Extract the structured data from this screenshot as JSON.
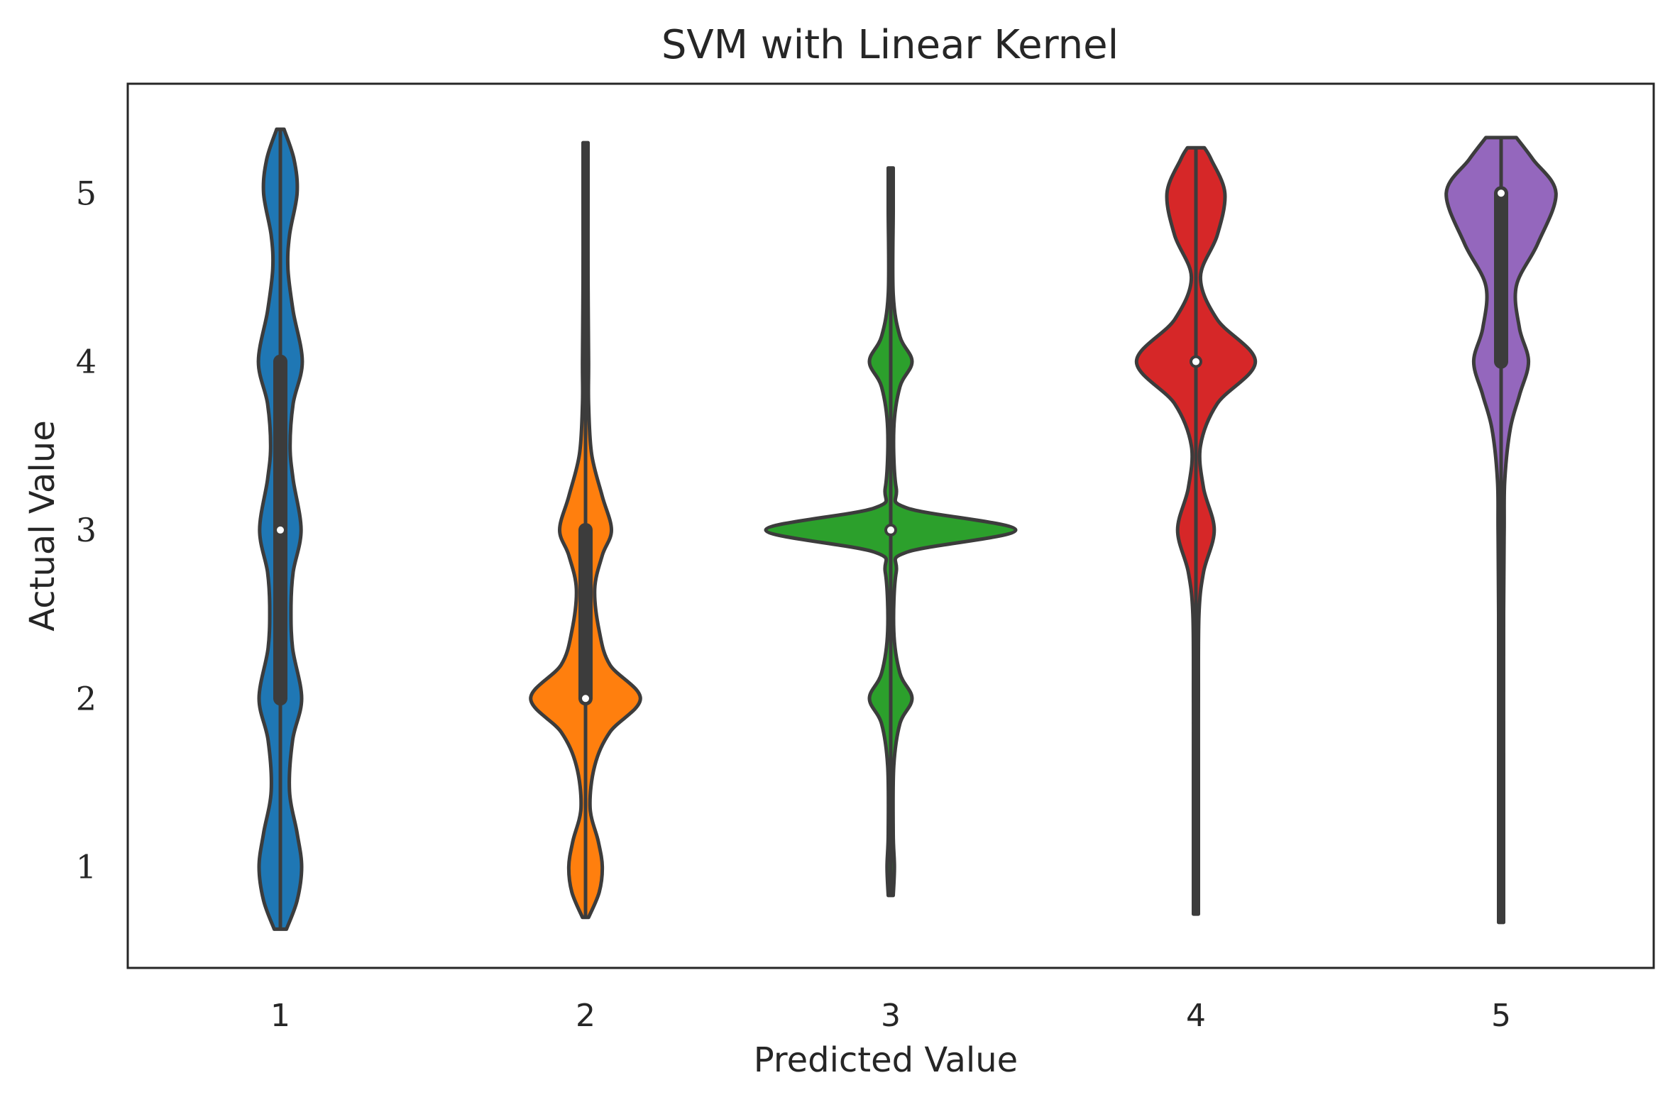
{
  "chart_data": {
    "type": "violin",
    "title": "SVM with Linear Kernel",
    "xlabel": "Predicted Value",
    "ylabel": "Actual Value",
    "categories": [
      "1",
      "2",
      "3",
      "4",
      "5"
    ],
    "y_ticks": [
      "1",
      "2",
      "3",
      "4",
      "5"
    ],
    "ylim": [
      0.4,
      5.65
    ],
    "grid": false,
    "legend": "none",
    "colors": [
      "#1f77b4",
      "#ff7f0e",
      "#2ca02c",
      "#d62728",
      "#9467bd"
    ],
    "edge_color": "#3c3c3c",
    "series": [
      {
        "category": "1",
        "min": 0.63,
        "max": 5.38,
        "median": 3,
        "q1": 2,
        "q3": 4,
        "density": [
          [
            0.63,
            0.2
          ],
          [
            0.8,
            0.55
          ],
          [
            1.0,
            0.7
          ],
          [
            1.2,
            0.55
          ],
          [
            1.45,
            0.3
          ],
          [
            1.75,
            0.4
          ],
          [
            2.0,
            0.7
          ],
          [
            2.3,
            0.4
          ],
          [
            2.55,
            0.35
          ],
          [
            2.75,
            0.42
          ],
          [
            3.0,
            0.68
          ],
          [
            3.3,
            0.42
          ],
          [
            3.5,
            0.32
          ],
          [
            3.75,
            0.42
          ],
          [
            4.0,
            0.72
          ],
          [
            4.3,
            0.42
          ],
          [
            4.55,
            0.25
          ],
          [
            4.75,
            0.3
          ],
          [
            5.0,
            0.55
          ],
          [
            5.2,
            0.45
          ],
          [
            5.38,
            0.12
          ]
        ]
      },
      {
        "category": "2",
        "min": 0.7,
        "max": 5.3,
        "median": 2,
        "q1": 2,
        "q3": 3,
        "density": [
          [
            0.7,
            0.1
          ],
          [
            0.85,
            0.45
          ],
          [
            1.0,
            0.55
          ],
          [
            1.15,
            0.42
          ],
          [
            1.35,
            0.15
          ],
          [
            1.6,
            0.3
          ],
          [
            1.8,
            0.8
          ],
          [
            2.0,
            1.8
          ],
          [
            2.2,
            0.8
          ],
          [
            2.4,
            0.45
          ],
          [
            2.65,
            0.3
          ],
          [
            2.85,
            0.55
          ],
          [
            3.0,
            0.85
          ],
          [
            3.2,
            0.55
          ],
          [
            3.45,
            0.2
          ],
          [
            3.75,
            0.1
          ],
          [
            4.0,
            0.1
          ],
          [
            4.5,
            0.06
          ],
          [
            5.0,
            0.05
          ],
          [
            5.3,
            0.05
          ]
        ]
      },
      {
        "category": "3",
        "min": 0.83,
        "max": 5.15,
        "median": 3,
        "q1": 3,
        "q3": 3,
        "density": [
          [
            0.83,
            0.08
          ],
          [
            1.0,
            0.12
          ],
          [
            1.2,
            0.08
          ],
          [
            1.6,
            0.1
          ],
          [
            1.85,
            0.3
          ],
          [
            2.0,
            0.7
          ],
          [
            2.15,
            0.3
          ],
          [
            2.4,
            0.1
          ],
          [
            2.75,
            0.18
          ],
          [
            2.87,
            0.55
          ],
          [
            3.0,
            4.1
          ],
          [
            3.13,
            0.55
          ],
          [
            3.25,
            0.18
          ],
          [
            3.6,
            0.1
          ],
          [
            3.85,
            0.3
          ],
          [
            4.0,
            0.7
          ],
          [
            4.15,
            0.3
          ],
          [
            4.4,
            0.08
          ],
          [
            4.9,
            0.08
          ],
          [
            5.15,
            0.06
          ]
        ]
      },
      {
        "category": "4",
        "min": 0.72,
        "max": 5.27,
        "median": 4,
        "q1": 4,
        "q3": 4,
        "density": [
          [
            0.72,
            0.06
          ],
          [
            1.5,
            0.06
          ],
          [
            2.0,
            0.08
          ],
          [
            2.5,
            0.1
          ],
          [
            2.75,
            0.25
          ],
          [
            3.0,
            0.6
          ],
          [
            3.25,
            0.25
          ],
          [
            3.5,
            0.15
          ],
          [
            3.75,
            0.7
          ],
          [
            4.0,
            1.95
          ],
          [
            4.25,
            0.7
          ],
          [
            4.5,
            0.15
          ],
          [
            4.75,
            0.7
          ],
          [
            5.0,
            0.95
          ],
          [
            5.2,
            0.5
          ],
          [
            5.27,
            0.28
          ]
        ]
      },
      {
        "category": "5",
        "min": 0.67,
        "max": 5.33,
        "median": 5,
        "q1": 4,
        "q3": 5,
        "density": [
          [
            0.67,
            0.05
          ],
          [
            1.5,
            0.06
          ],
          [
            2.5,
            0.06
          ],
          [
            3.0,
            0.1
          ],
          [
            3.3,
            0.12
          ],
          [
            3.6,
            0.3
          ],
          [
            3.8,
            0.6
          ],
          [
            4.0,
            0.9
          ],
          [
            4.2,
            0.6
          ],
          [
            4.45,
            0.5
          ],
          [
            4.7,
            1.2
          ],
          [
            5.0,
            1.8
          ],
          [
            5.2,
            1.05
          ],
          [
            5.33,
            0.5
          ]
        ]
      }
    ]
  }
}
